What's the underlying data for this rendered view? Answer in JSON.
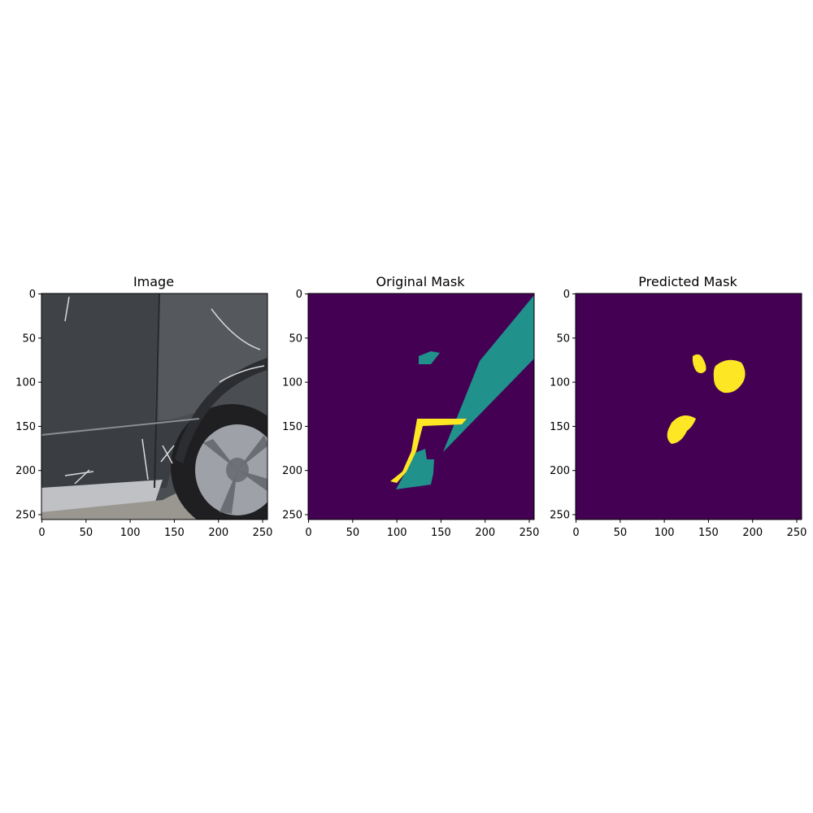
{
  "figure": {
    "panels": [
      {
        "title": "Image"
      },
      {
        "title": "Original Mask"
      },
      {
        "title": "Predicted Mask"
      }
    ],
    "x_ticks": [
      "0",
      "50",
      "100",
      "150",
      "200",
      "250"
    ],
    "y_ticks": [
      "0",
      "50",
      "100",
      "150",
      "200",
      "250"
    ]
  },
  "colors": {
    "mask_background": "#440154",
    "mask_class_1": "#21918c",
    "mask_class_2": "#fde725",
    "car_body": "#4a4d52",
    "asphalt": "#9a9790"
  }
}
